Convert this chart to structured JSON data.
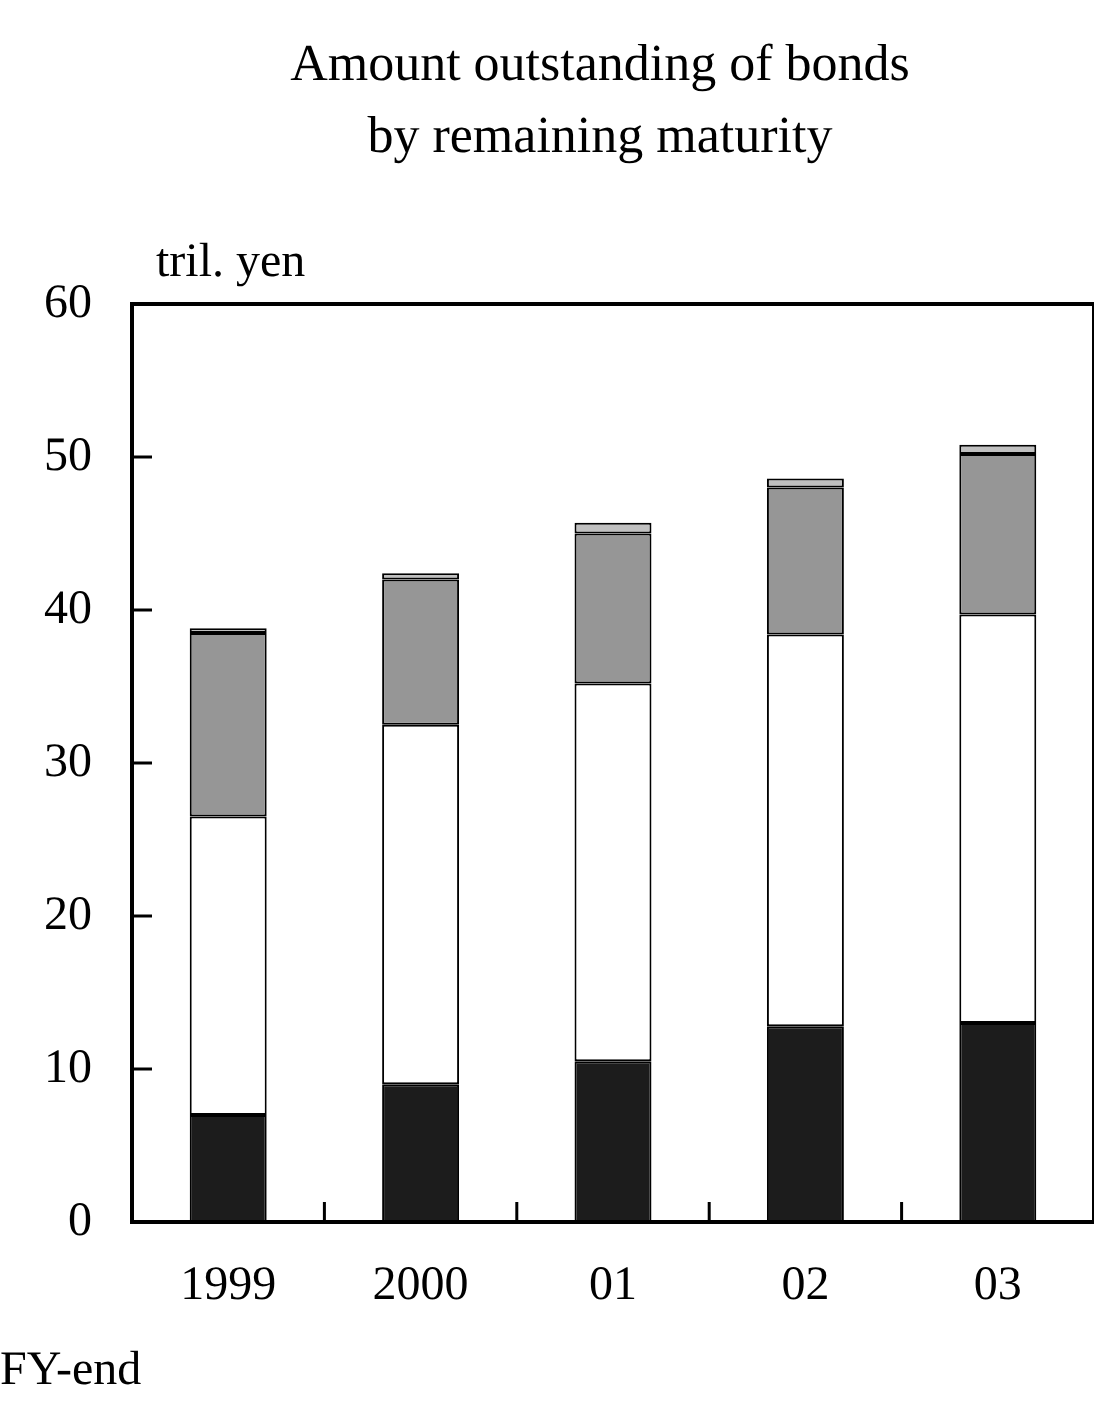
{
  "chart_data": {
    "type": "bar",
    "title": "Amount outstanding of bonds\nby remaining maturity",
    "ylabel": "tril. yen",
    "xlabel": "FY-end",
    "categories": [
      "1999",
      "2000",
      "01",
      "02",
      "03"
    ],
    "stacked": true,
    "ylim": [
      0,
      60
    ],
    "yticks": [
      0,
      10,
      20,
      30,
      40,
      50,
      60
    ],
    "grid": false,
    "legend": false,
    "series": [
      {
        "color": "#1c1c1c",
        "values": [
          7,
          9,
          10.5,
          12.8,
          13
        ]
      },
      {
        "color": "#ffffff",
        "values": [
          19.5,
          23.5,
          24.7,
          25.6,
          26.7
        ]
      },
      {
        "color": "#969696",
        "values": [
          12,
          9.5,
          9.8,
          9.6,
          10.5
        ]
      },
      {
        "color": "#c0c0c0",
        "values": [
          0.3,
          0.4,
          0.7,
          0.6,
          0.6
        ]
      }
    ]
  }
}
